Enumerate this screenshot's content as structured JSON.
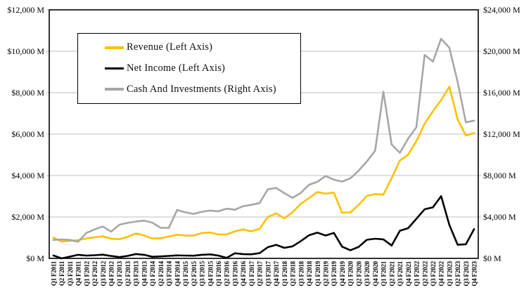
{
  "chart_data": {
    "type": "line",
    "title": "",
    "grid": true,
    "legend_position": "top-left-inside",
    "categories": [
      "Q1 F2011",
      "Q2 F2011",
      "Q3 F2011",
      "Q4 F2011",
      "Q1 F2012",
      "Q2 F2012",
      "Q3 F2012",
      "Q4 F2012",
      "Q1 F2013",
      "Q2 F2013",
      "Q3 F2013",
      "Q4 F2013",
      "Q1 F2014",
      "Q2 F2014",
      "Q3 F2014",
      "Q4 F2014",
      "Q1 F2015",
      "Q2 F2015",
      "Q3 F2015",
      "Q4 F2015",
      "Q1 F2016",
      "Q2 F2016",
      "Q3 F2016",
      "Q4 F2016",
      "Q1 F2017",
      "Q2 F2017",
      "Q3 F2017",
      "Q4 F2017",
      "Q1 F2018",
      "Q2 F2018",
      "Q3 F2018",
      "Q4 F2018",
      "Q1 F2019",
      "Q2 F2019",
      "Q3 F2019",
      "Q4 F2019",
      "Q1 F2020",
      "Q2 F2020",
      "Q3 F2020",
      "Q4 F2020",
      "Q1 F2021",
      "Q2 F2021",
      "Q3 F2021",
      "Q4 F2021",
      "Q1 F2022",
      "Q2 F2022",
      "Q3 F2022",
      "Q4 F2022",
      "Q1 F2023",
      "Q2 F2023",
      "Q3 F2023",
      "Q4 F2023"
    ],
    "series": [
      {
        "name": "Revenue (Left Axis)",
        "axis": "left",
        "color": "#FFC000",
        "values": [
          1002,
          811,
          844,
          886,
          962,
          1017,
          1066,
          953,
          925,
          1044,
          1204,
          1107,
          955,
          977,
          1054,
          1144,
          1103,
          1103,
          1225,
          1251,
          1151,
          1153,
          1305,
          1401,
          1305,
          1428,
          2004,
          2173,
          1937,
          2230,
          2636,
          2911,
          3207,
          3123,
          3181,
          2205,
          2220,
          2579,
          3014,
          3105,
          3080,
          3866,
          4726,
          5003,
          5661,
          6507,
          7103,
          7643,
          8288,
          6704,
          5931,
          6051
        ]
      },
      {
        "name": "Net Income (Left Axis)",
        "axis": "left",
        "color": "#000000",
        "values": [
          138,
          -141,
          84,
          172,
          135,
          152,
          178,
          116,
          60,
          119,
          209,
          174,
          78,
          96,
          119,
          147,
          137,
          128,
          173,
          193,
          134,
          26,
          246,
          207,
          196,
          253,
          542,
          655,
          507,
          583,
          838,
          1118,
          1244,
          1101,
          1230,
          567,
          394,
          552,
          899,
          950,
          917,
          622,
          1336,
          1457,
          1912,
          2374,
          2464,
          3003,
          1618,
          656,
          680,
          1414
        ]
      },
      {
        "name": "Cash And Investments (Right Axis)",
        "axis": "right",
        "color": "#A6A6A6",
        "values": [
          1780,
          1830,
          1780,
          1610,
          2460,
          2800,
          3070,
          2580,
          3250,
          3430,
          3550,
          3650,
          3450,
          2950,
          2950,
          4670,
          4450,
          4300,
          4500,
          4620,
          4550,
          4800,
          4700,
          5040,
          5170,
          5340,
          6670,
          6800,
          6300,
          5850,
          6330,
          7110,
          7400,
          7950,
          7600,
          7420,
          7730,
          8470,
          9360,
          10400,
          16100,
          11000,
          10200,
          11560,
          12670,
          19650,
          19000,
          21210,
          20340,
          17040,
          13140,
          13300
        ]
      }
    ],
    "left_axis": {
      "min": 0,
      "max": 12000,
      "step": 2000,
      "tick_labels": [
        "$0 M",
        "$2,000 M",
        "$4,000 M",
        "$6,000 M",
        "$8,000 M",
        "$10,000 M",
        "$12,000 M"
      ]
    },
    "right_axis": {
      "min": 0,
      "max": 24000,
      "step": 4000,
      "tick_labels": [
        "$0 M",
        "$4,000 M",
        "$8,000 M",
        "$12,000 M",
        "$16,000 M",
        "$20,000 M",
        "$24,000 M"
      ]
    },
    "colors": {
      "gridline": "#BFBFBF",
      "plot_border": "#000000",
      "background": "#FFFFFF"
    }
  }
}
